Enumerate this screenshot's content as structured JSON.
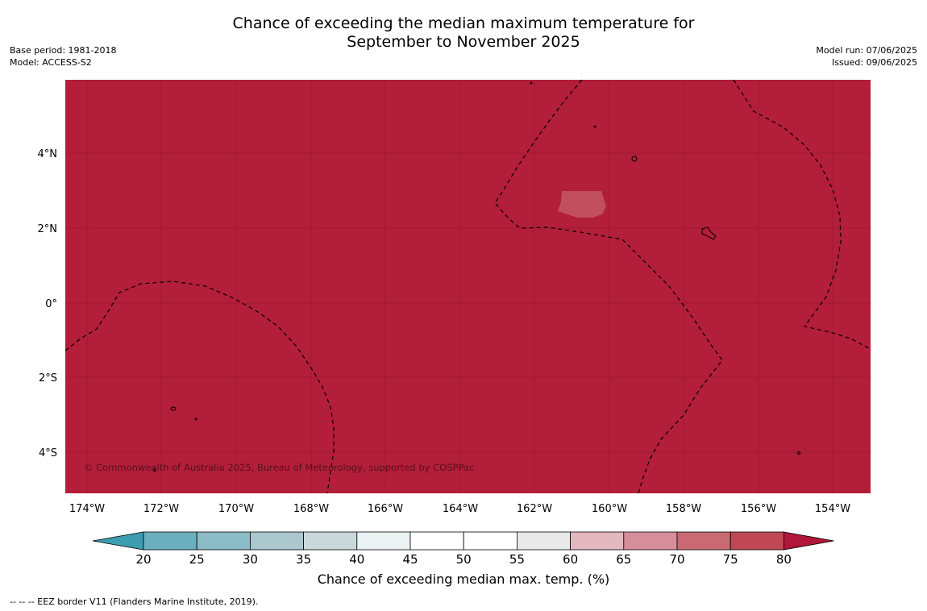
{
  "title": {
    "line1": "Chance of exceeding the median maximum temperature for",
    "line2": "September to November 2025"
  },
  "meta_left": {
    "base_period": "Base period: 1981-2018",
    "model": "Model: ACCESS-S2"
  },
  "meta_right": {
    "model_run": "Model run: 07/06/2025",
    "issued": "Issued: 09/06/2025"
  },
  "map": {
    "background_color": "#b31e3a",
    "patch_color": "#c14f5e",
    "copyright": "© Commonwealth of Australia 2025, Bureau of Meteorology, supported by COSPPac",
    "lon_ticks": [
      "174°W",
      "172°W",
      "170°W",
      "168°W",
      "166°W",
      "164°W",
      "162°W",
      "160°W",
      "158°W",
      "156°W",
      "154°W"
    ],
    "lat_ticks": [
      "4°N",
      "2°N",
      "0°",
      "2°S",
      "4°S"
    ]
  },
  "colorbar": {
    "ticks": [
      "20",
      "25",
      "30",
      "35",
      "40",
      "45",
      "50",
      "55",
      "60",
      "65",
      "70",
      "75",
      "80"
    ],
    "colors": [
      "#3c9cb0",
      "#6bafbf",
      "#8bbbc6",
      "#aac8cd",
      "#cad8db",
      "#ebf2f3",
      "#ffffff",
      "#ffffff",
      "#e9e9e9",
      "#e3b8bf",
      "#d68f9a",
      "#c96973",
      "#c04754",
      "#b0173a"
    ],
    "label": "Chance of exceeding median max. temp. (%)"
  },
  "footer": "--  --  -- EEZ border V11 (Flanders Marine Institute, 2019)."
}
